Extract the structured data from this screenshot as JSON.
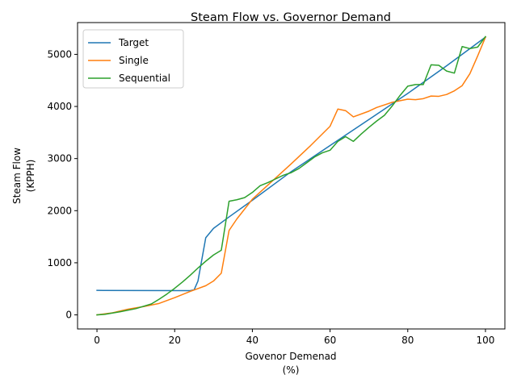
{
  "chart_data": {
    "type": "line",
    "title": "Steam Flow vs. Governor Demand",
    "xlabel": "Govenor Demenad",
    "xlabel_unit": "(%)",
    "ylabel": "Steam Flow",
    "ylabel_unit": "(KPPH)",
    "xlim": [
      -5,
      105
    ],
    "ylim": [
      -270,
      5610
    ],
    "xticks": [
      0,
      20,
      40,
      60,
      80,
      100
    ],
    "yticks": [
      0,
      1000,
      2000,
      3000,
      4000,
      5000
    ],
    "grid": false,
    "legend_position": "top-left",
    "series": [
      {
        "name": "Target",
        "color": "#1f77b4",
        "points": [
          [
            0,
            470
          ],
          [
            24,
            465
          ],
          [
            25,
            480
          ],
          [
            26,
            650
          ],
          [
            28,
            1480
          ],
          [
            30,
            1660
          ],
          [
            34,
            1880
          ],
          [
            40,
            2200
          ],
          [
            50,
            2750
          ],
          [
            60,
            3250
          ],
          [
            70,
            3750
          ],
          [
            80,
            4250
          ],
          [
            90,
            4780
          ],
          [
            100,
            5330
          ]
        ]
      },
      {
        "name": "Single",
        "color": "#ff7f0e",
        "points": [
          [
            0,
            0
          ],
          [
            4,
            40
          ],
          [
            8,
            110
          ],
          [
            12,
            160
          ],
          [
            16,
            220
          ],
          [
            20,
            330
          ],
          [
            24,
            450
          ],
          [
            28,
            560
          ],
          [
            30,
            650
          ],
          [
            32,
            800
          ],
          [
            34,
            1620
          ],
          [
            36,
            1840
          ],
          [
            40,
            2220
          ],
          [
            50,
            2900
          ],
          [
            55,
            3250
          ],
          [
            60,
            3620
          ],
          [
            62,
            3950
          ],
          [
            64,
            3920
          ],
          [
            66,
            3800
          ],
          [
            70,
            3910
          ],
          [
            72,
            3980
          ],
          [
            76,
            4080
          ],
          [
            80,
            4140
          ],
          [
            82,
            4130
          ],
          [
            84,
            4150
          ],
          [
            86,
            4200
          ],
          [
            88,
            4195
          ],
          [
            90,
            4230
          ],
          [
            92,
            4300
          ],
          [
            94,
            4400
          ],
          [
            96,
            4630
          ],
          [
            98,
            4970
          ],
          [
            100,
            5330
          ]
        ]
      },
      {
        "name": "Sequential",
        "color": "#2ca02c",
        "points": [
          [
            0,
            0
          ],
          [
            2,
            10
          ],
          [
            6,
            60
          ],
          [
            10,
            120
          ],
          [
            14,
            210
          ],
          [
            16,
            300
          ],
          [
            18,
            400
          ],
          [
            20,
            510
          ],
          [
            22,
            630
          ],
          [
            24,
            760
          ],
          [
            26,
            900
          ],
          [
            28,
            1030
          ],
          [
            30,
            1150
          ],
          [
            32,
            1240
          ],
          [
            34,
            2180
          ],
          [
            36,
            2210
          ],
          [
            38,
            2250
          ],
          [
            40,
            2350
          ],
          [
            42,
            2480
          ],
          [
            44,
            2540
          ],
          [
            46,
            2610
          ],
          [
            48,
            2680
          ],
          [
            50,
            2730
          ],
          [
            52,
            2810
          ],
          [
            54,
            2920
          ],
          [
            56,
            3030
          ],
          [
            58,
            3110
          ],
          [
            60,
            3160
          ],
          [
            62,
            3330
          ],
          [
            64,
            3420
          ],
          [
            66,
            3330
          ],
          [
            68,
            3470
          ],
          [
            70,
            3600
          ],
          [
            72,
            3720
          ],
          [
            74,
            3830
          ],
          [
            76,
            4010
          ],
          [
            78,
            4210
          ],
          [
            80,
            4390
          ],
          [
            82,
            4420
          ],
          [
            84,
            4420
          ],
          [
            86,
            4800
          ],
          [
            88,
            4790
          ],
          [
            90,
            4680
          ],
          [
            92,
            4640
          ],
          [
            94,
            5150
          ],
          [
            96,
            5110
          ],
          [
            98,
            5140
          ],
          [
            100,
            5340
          ]
        ]
      }
    ]
  }
}
